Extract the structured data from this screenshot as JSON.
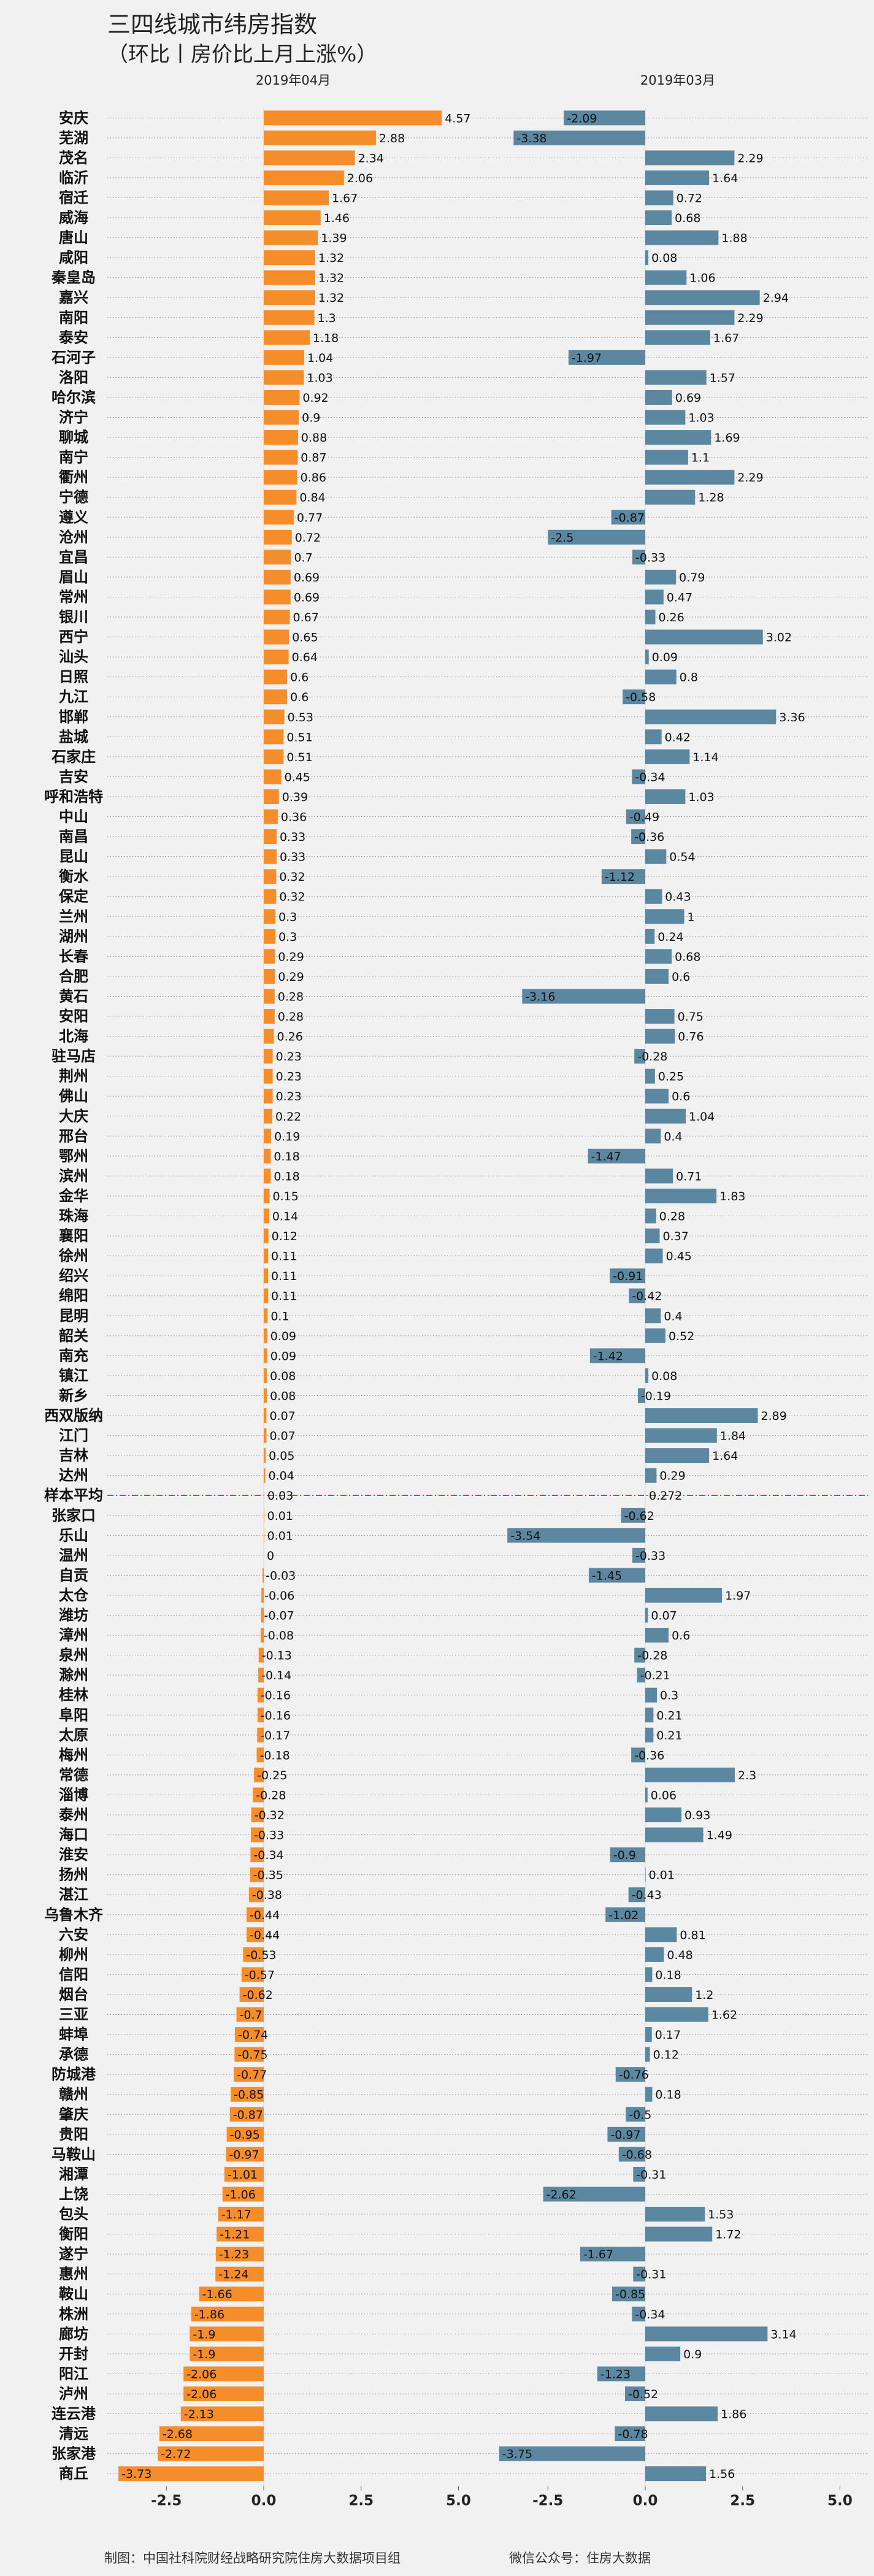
{
  "chart_data": {
    "type": "bar",
    "title": "三四线城市纬房指数",
    "subtitle": "（环比丨房价比上月上涨%）",
    "panels": [
      "2019年04月",
      "2019年03月"
    ],
    "xlim": [
      -4.2,
      5.5
    ],
    "x_ticks": [
      -2.5,
      0.0,
      2.5,
      5.0
    ],
    "tick_labels": [
      "-2.5",
      "0.0",
      "2.5",
      "5.0"
    ],
    "bar_colors": {
      "apr": "#f58d2b",
      "mar": "#5c87a0"
    },
    "reference_line_color": "#c0392b",
    "grid": "dotted horizontal per row",
    "footer_left": "制图：中国社科院财经战略研究院住房大数据项目组",
    "footer_right": "微信公众号：住房大数据",
    "categories": [
      "安庆",
      "芜湖",
      "茂名",
      "临沂",
      "宿迁",
      "威海",
      "唐山",
      "咸阳",
      "秦皇岛",
      "嘉兴",
      "南阳",
      "泰安",
      "石河子",
      "洛阳",
      "哈尔滨",
      "济宁",
      "聊城",
      "南宁",
      "衢州",
      "宁德",
      "遵义",
      "沧州",
      "宜昌",
      "眉山",
      "常州",
      "银川",
      "西宁",
      "汕头",
      "日照",
      "九江",
      "邯郸",
      "盐城",
      "石家庄",
      "吉安",
      "呼和浩特",
      "中山",
      "南昌",
      "昆山",
      "衡水",
      "保定",
      "兰州",
      "湖州",
      "长春",
      "合肥",
      "黄石",
      "安阳",
      "北海",
      "驻马店",
      "荆州",
      "佛山",
      "大庆",
      "邢台",
      "鄂州",
      "滨州",
      "金华",
      "珠海",
      "襄阳",
      "徐州",
      "绍兴",
      "绵阳",
      "昆明",
      "韶关",
      "南充",
      "镇江",
      "新乡",
      "西双版纳",
      "江门",
      "吉林",
      "达州",
      "样本平均",
      "张家口",
      "乐山",
      "温州",
      "自贡",
      "太仓",
      "潍坊",
      "漳州",
      "泉州",
      "滁州",
      "桂林",
      "阜阳",
      "太原",
      "梅州",
      "常德",
      "淄博",
      "泰州",
      "海口",
      "淮安",
      "扬州",
      "湛江",
      "乌鲁木齐",
      "六安",
      "柳州",
      "信阳",
      "烟台",
      "三亚",
      "蚌埠",
      "承德",
      "防城港",
      "赣州",
      "肇庆",
      "贵阳",
      "马鞍山",
      "湘潭",
      "上饶",
      "包头",
      "衡阳",
      "遂宁",
      "惠州",
      "鞍山",
      "株洲",
      "廊坊",
      "开封",
      "阳江",
      "泸州",
      "连云港",
      "清远",
      "张家港",
      "商丘"
    ],
    "series": [
      {
        "name": "2019年04月",
        "values": [
          4.57,
          2.88,
          2.34,
          2.06,
          1.67,
          1.46,
          1.39,
          1.32,
          1.32,
          1.32,
          1.3,
          1.18,
          1.04,
          1.03,
          0.92,
          0.9,
          0.88,
          0.87,
          0.86,
          0.84,
          0.77,
          0.72,
          0.7,
          0.69,
          0.69,
          0.67,
          0.65,
          0.64,
          0.6,
          0.6,
          0.53,
          0.51,
          0.51,
          0.45,
          0.39,
          0.36,
          0.33,
          0.33,
          0.32,
          0.32,
          0.3,
          0.3,
          0.29,
          0.29,
          0.28,
          0.28,
          0.26,
          0.23,
          0.23,
          0.23,
          0.22,
          0.19,
          0.18,
          0.18,
          0.15,
          0.14,
          0.12,
          0.11,
          0.11,
          0.11,
          0.1,
          0.09,
          0.09,
          0.08,
          0.08,
          0.07,
          0.07,
          0.05,
          0.04,
          0.03,
          0.01,
          0.01,
          0,
          -0.03,
          -0.06,
          -0.07,
          -0.08,
          -0.13,
          -0.14,
          -0.16,
          -0.16,
          -0.17,
          -0.18,
          -0.25,
          -0.28,
          -0.32,
          -0.33,
          -0.34,
          -0.35,
          -0.38,
          -0.44,
          -0.44,
          -0.53,
          -0.57,
          -0.62,
          -0.7,
          -0.74,
          -0.75,
          -0.77,
          -0.85,
          -0.87,
          -0.95,
          -0.97,
          -1.01,
          -1.06,
          -1.17,
          -1.21,
          -1.23,
          -1.24,
          -1.66,
          -1.86,
          -1.9,
          -1.9,
          -2.06,
          -2.06,
          -2.13,
          -2.68,
          -2.72,
          -3.73
        ]
      },
      {
        "name": "2019年03月",
        "values": [
          -2.09,
          -3.38,
          2.29,
          1.64,
          0.72,
          0.68,
          1.88,
          0.08,
          1.06,
          2.94,
          2.29,
          1.67,
          -1.97,
          1.57,
          0.69,
          1.03,
          1.69,
          1.1,
          2.29,
          1.28,
          -0.87,
          -2.5,
          -0.33,
          0.79,
          0.47,
          0.26,
          3.02,
          0.09,
          0.8,
          -0.58,
          3.36,
          0.42,
          1.14,
          -0.34,
          1.03,
          -0.49,
          -0.36,
          0.54,
          -1.12,
          0.43,
          1,
          0.24,
          0.68,
          0.6,
          -3.16,
          0.75,
          0.76,
          -0.28,
          0.25,
          0.6,
          1.04,
          0.4,
          -1.47,
          0.71,
          1.83,
          0.28,
          0.37,
          0.45,
          -0.91,
          -0.42,
          0.4,
          0.52,
          -1.42,
          0.08,
          -0.19,
          2.89,
          1.84,
          1.64,
          0.29,
          0.272,
          -0.62,
          -3.54,
          -0.33,
          -1.45,
          1.97,
          0.07,
          0.6,
          -0.28,
          -0.21,
          0.3,
          0.21,
          0.21,
          -0.36,
          2.3,
          0.06,
          0.93,
          1.49,
          -0.9,
          0.01,
          -0.43,
          -1.02,
          0.81,
          0.48,
          0.18,
          1.2,
          1.62,
          0.17,
          0.12,
          -0.76,
          0.18,
          -0.5,
          -0.97,
          -0.68,
          -0.31,
          -2.62,
          1.53,
          1.72,
          -1.67,
          -0.31,
          -0.85,
          -0.34,
          3.14,
          0.9,
          -1.23,
          -0.52,
          1.86,
          -0.78,
          -3.75,
          1.56
        ]
      }
    ]
  }
}
